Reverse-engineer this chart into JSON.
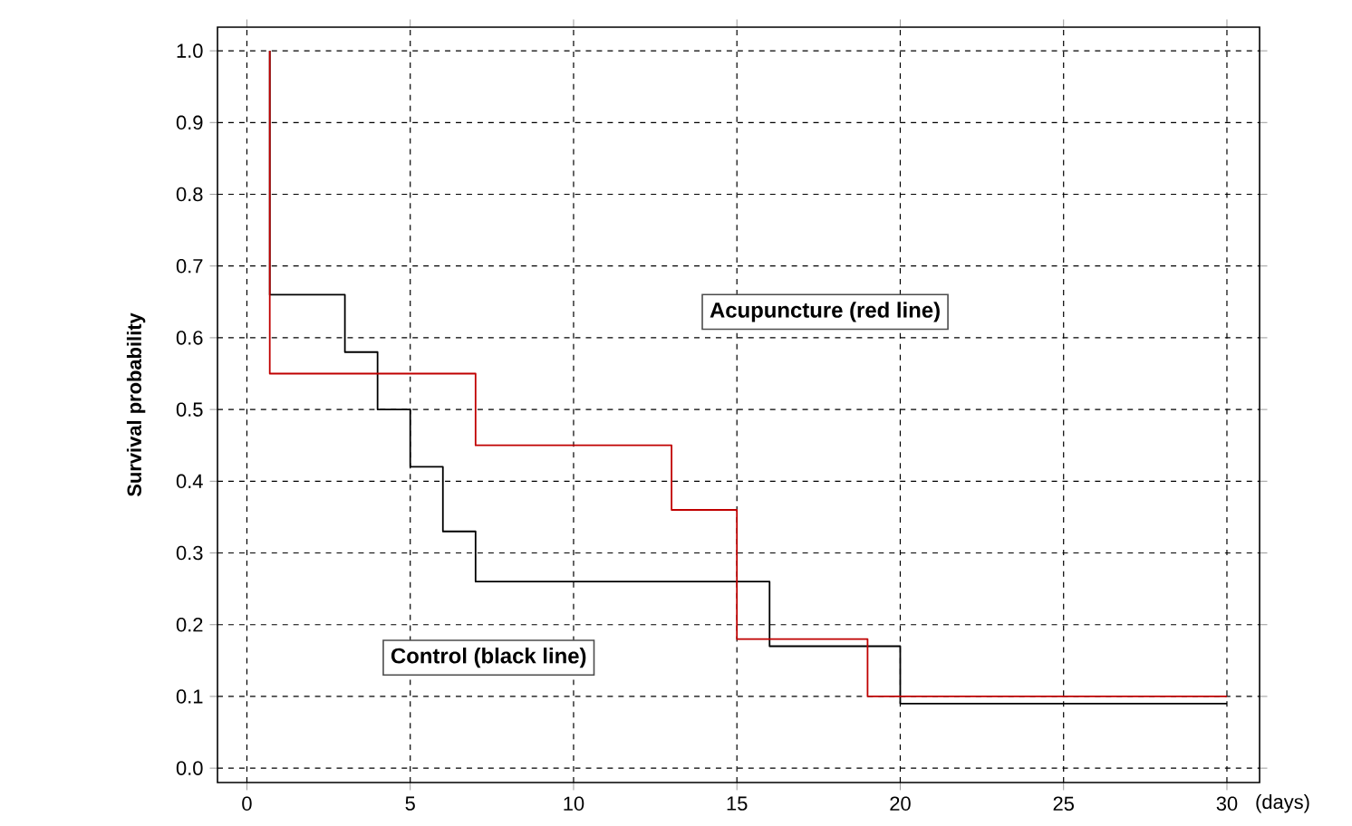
{
  "chart_data": {
    "type": "step",
    "xlabel": "(days)",
    "ylabel": "Survival probability",
    "annotations": [
      "Acupuncture (red line)",
      "Control (black line)"
    ],
    "series": [
      {
        "color": "#c00000",
        "x": [
          0.7,
          7,
          13,
          15,
          19,
          30
        ],
        "values": [
          1.0,
          0.55,
          0.45,
          0.36,
          0.18,
          0.1
        ]
      },
      {
        "color": "#000000",
        "x": [
          0.7,
          3,
          4,
          5,
          6,
          7,
          16,
          20,
          30
        ],
        "values": [
          1.0,
          0.66,
          0.58,
          0.5,
          0.42,
          0.33,
          0.26,
          0.17,
          0.09
        ]
      }
    ],
    "xlim": [
      -0.9,
      31
    ],
    "ylim": [
      -0.02,
      1.033
    ],
    "xticks": [
      0,
      5,
      10,
      15,
      20,
      25,
      30
    ],
    "yticks": [
      {
        "value": 0,
        "label": "0.0"
      },
      {
        "value": 0.1,
        "label": "0.1"
      },
      {
        "value": 0.2,
        "label": "0.2"
      },
      {
        "value": 0.3,
        "label": "0.3"
      },
      {
        "value": 0.4,
        "label": "0.4"
      },
      {
        "value": 0.5,
        "label": "0.5"
      },
      {
        "value": 0.6,
        "label": "0.6"
      },
      {
        "value": 0.7,
        "label": "0.7"
      },
      {
        "value": 0.8,
        "label": "0.8"
      },
      {
        "value": 0.9,
        "label": "0.9"
      },
      {
        "value": 1.0,
        "label": "1.0"
      }
    ],
    "grid": true,
    "line_style": "solid"
  }
}
